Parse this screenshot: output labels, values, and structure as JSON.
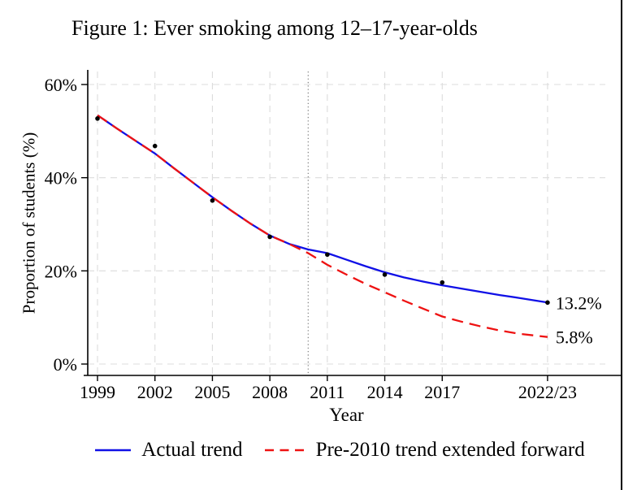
{
  "window": {
    "right_edge_color": "#000000"
  },
  "chart_data": {
    "type": "line",
    "title": "Figure 1: Ever smoking among 12–17-year-olds",
    "xlabel": "Year",
    "ylabel": "Proportion of students (%)",
    "xlim": [
      1998.5,
      2026.5
    ],
    "ylim": [
      0,
      65
    ],
    "grid": "dashed gridlines at every x tick and every y tick",
    "legend_position": "bottom-center",
    "colors": {
      "actual": "#1010e6",
      "projection": "#ee1212",
      "grid": "#dcdcdc",
      "reference": "#737373",
      "points": "#000000",
      "axis": "#000000"
    },
    "x_ticks": [
      {
        "value": 1999,
        "label": "1999"
      },
      {
        "value": 2002,
        "label": "2002"
      },
      {
        "value": 2005,
        "label": "2005"
      },
      {
        "value": 2008,
        "label": "2008"
      },
      {
        "value": 2011,
        "label": "2011"
      },
      {
        "value": 2014,
        "label": "2014"
      },
      {
        "value": 2017,
        "label": "2017"
      },
      {
        "value": 2022.5,
        "label": "2022/23"
      }
    ],
    "y_ticks": [
      {
        "value": 0,
        "label": "0%"
      },
      {
        "value": 20,
        "label": "20%"
      },
      {
        "value": 40,
        "label": "40%"
      },
      {
        "value": 60,
        "label": "60%"
      }
    ],
    "reference_line": {
      "x": 2010,
      "style": "dotted-vertical"
    },
    "scatter": {
      "points": [
        [
          1999,
          52.7
        ],
        [
          2002,
          46.8
        ],
        [
          2005,
          35.1
        ],
        [
          2008,
          27.3
        ],
        [
          2011,
          23.5
        ],
        [
          2014,
          19.2
        ],
        [
          2017,
          17.5
        ],
        [
          2022.5,
          13.2
        ]
      ]
    },
    "series": [
      {
        "name": "Actual trend",
        "style": "solid",
        "color_key": "actual",
        "end_label": "13.2%",
        "points": [
          [
            1999,
            53.4
          ],
          [
            2000,
            50.6
          ],
          [
            2001,
            47.9
          ],
          [
            2002,
            45.2
          ],
          [
            2003,
            42.0
          ],
          [
            2004,
            38.9
          ],
          [
            2005,
            35.8
          ],
          [
            2006,
            32.9
          ],
          [
            2007,
            30.1
          ],
          [
            2008,
            27.6
          ],
          [
            2009,
            25.8
          ],
          [
            2010,
            24.6
          ],
          [
            2011,
            23.8
          ],
          [
            2012,
            22.4
          ],
          [
            2013,
            21.0
          ],
          [
            2014,
            19.7
          ],
          [
            2015,
            18.6
          ],
          [
            2016,
            17.7
          ],
          [
            2017,
            16.9
          ],
          [
            2018,
            16.2
          ],
          [
            2019,
            15.5
          ],
          [
            2020,
            14.8
          ],
          [
            2021,
            14.2
          ],
          [
            2022.5,
            13.2
          ]
        ]
      },
      {
        "name": "Pre-2010 trend extended forward",
        "style": "dashed",
        "color_key": "projection",
        "end_label": "5.8%",
        "points": [
          [
            1999,
            53.4
          ],
          [
            2000,
            50.6
          ],
          [
            2001,
            47.9
          ],
          [
            2002,
            45.2
          ],
          [
            2003,
            42.0
          ],
          [
            2004,
            38.9
          ],
          [
            2005,
            35.8
          ],
          [
            2006,
            32.9
          ],
          [
            2007,
            30.1
          ],
          [
            2008,
            27.6
          ],
          [
            2009,
            25.8
          ],
          [
            2010,
            23.8
          ],
          [
            2011,
            21.3
          ],
          [
            2012,
            19.2
          ],
          [
            2013,
            17.2
          ],
          [
            2014,
            15.4
          ],
          [
            2015,
            13.6
          ],
          [
            2016,
            11.9
          ],
          [
            2017,
            10.2
          ],
          [
            2018,
            9.1
          ],
          [
            2019,
            8.1
          ],
          [
            2020,
            7.2
          ],
          [
            2021,
            6.5
          ],
          [
            2022.5,
            5.8
          ]
        ]
      }
    ]
  }
}
